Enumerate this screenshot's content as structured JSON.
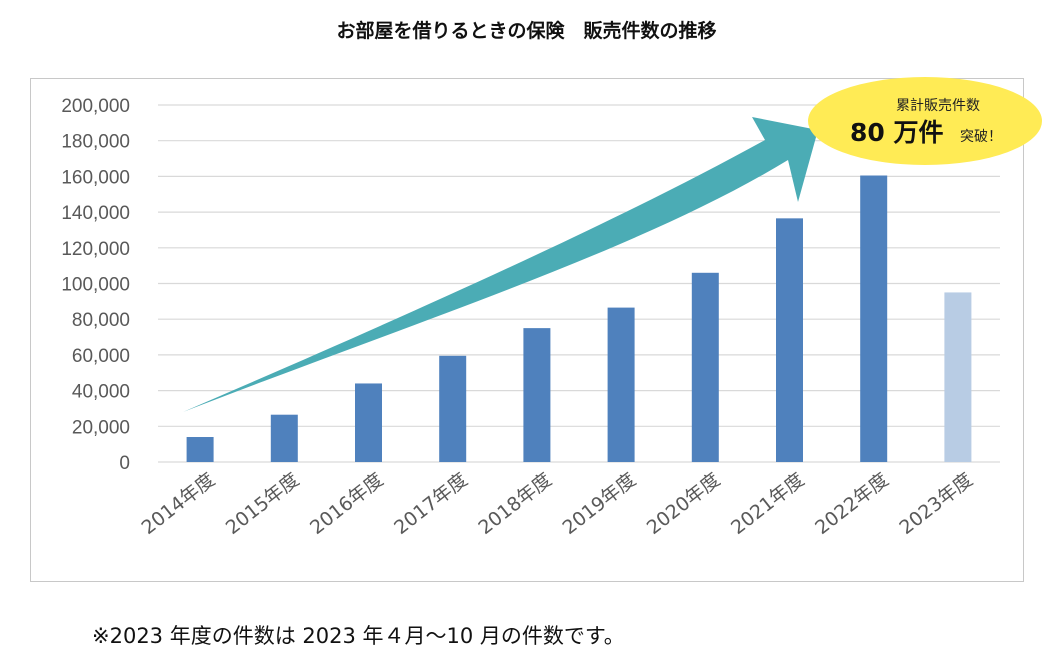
{
  "chart_data": {
    "type": "bar",
    "title": "お部屋を借りるときの保険　販売件数の推移",
    "categories": [
      "2014年度",
      "2015年度",
      "2016年度",
      "2017年度",
      "2018年度",
      "2019年度",
      "2020年度",
      "2021年度",
      "2022年度",
      "2023年度"
    ],
    "values": [
      14000,
      26500,
      44000,
      59500,
      75000,
      86500,
      106000,
      136500,
      160500,
      95000
    ],
    "highlight_last_partial": true,
    "ylim": [
      0,
      200000
    ],
    "yticks": [
      0,
      20000,
      40000,
      60000,
      80000,
      100000,
      120000,
      140000,
      160000,
      180000,
      200000
    ],
    "ytick_labels": [
      "0",
      "20,000",
      "40,000",
      "60,000",
      "80,000",
      "100,000",
      "120,000",
      "140,000",
      "160,000",
      "180,000",
      "200,000"
    ],
    "grid": true,
    "xlabel": "",
    "ylabel": "",
    "annotation": {
      "line1": "累計販売件数",
      "big": "80 万件",
      "suffix": "突破！"
    }
  },
  "colors": {
    "bar": "#4f81bd",
    "bar_partial": "#b8cce4",
    "arrow": "#4bacb5",
    "bubble": "#ffeb55",
    "grid": "#d9d9d9",
    "axis_text": "#595959"
  },
  "footnote": "※2023 年度の件数は 2023 年４月～10 月の件数です。"
}
